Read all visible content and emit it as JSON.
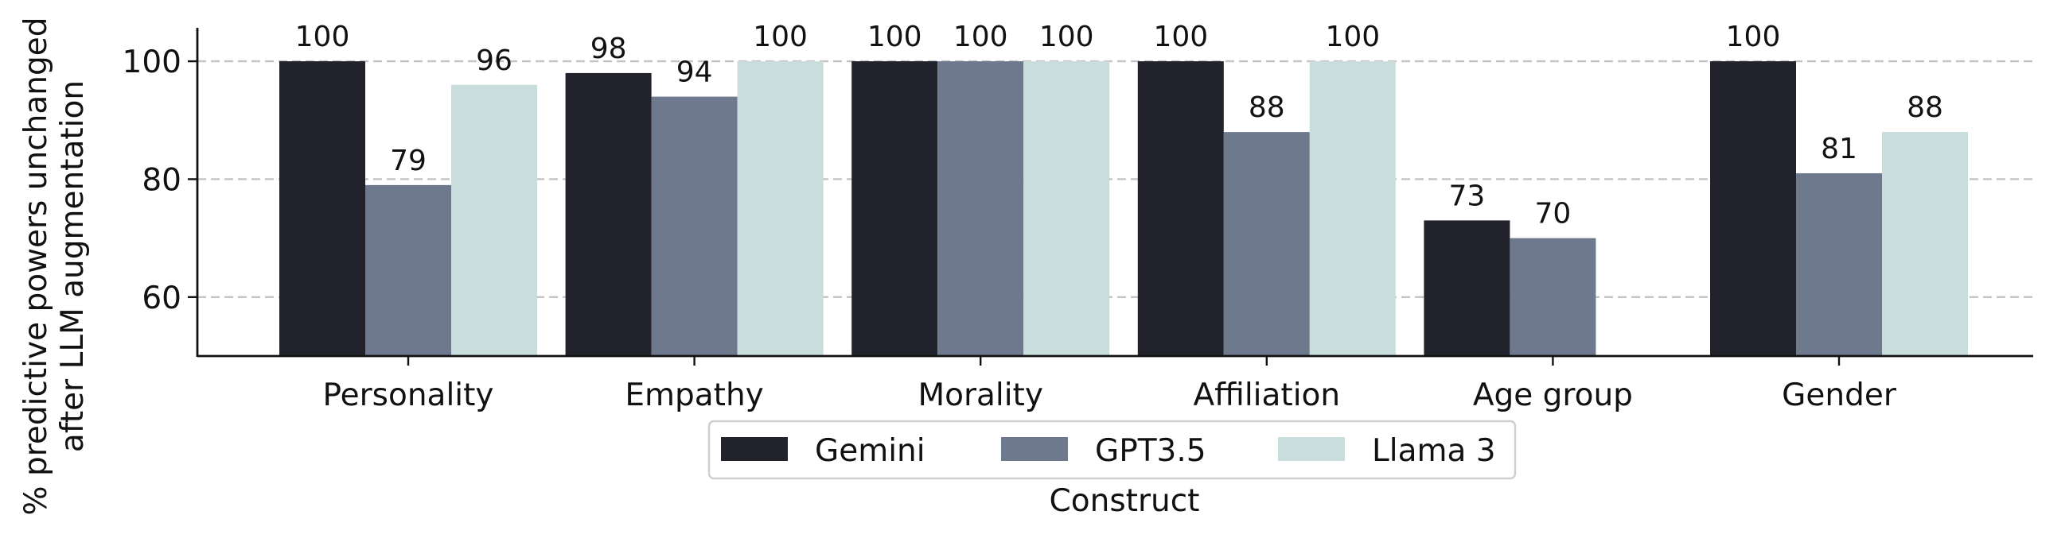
{
  "chart_data": {
    "type": "bar",
    "xlabel": "Construct",
    "ylabel_lines": [
      "% predictive powers unchanged",
      "after LLM augmentation"
    ],
    "categories": [
      "Personality",
      "Empathy",
      "Morality",
      "Affiliation",
      "Age group",
      "Gender"
    ],
    "series": [
      {
        "name": "Gemini",
        "color": "#22222d",
        "values": [
          100,
          98,
          100,
          100,
          73,
          100
        ]
      },
      {
        "name": "GPT3.5",
        "color": "#6e798d",
        "values": [
          79,
          94,
          100,
          88,
          70,
          81
        ]
      },
      {
        "name": "Llama 3",
        "color": "#c9dddc",
        "values": [
          96,
          100,
          100,
          100,
          null,
          88
        ]
      }
    ],
    "data_labels": [
      [
        "100",
        "98",
        "100",
        "100",
        "73",
        "100"
      ],
      [
        "79",
        "94",
        "100",
        "88",
        "70",
        "81"
      ],
      [
        "96",
        "100",
        "100",
        "100",
        null,
        "88"
      ]
    ],
    "yticks": [
      60,
      80,
      100
    ],
    "ylim": [
      50,
      105
    ],
    "grid": "horizontal dashed",
    "legend_position": "bottom-center"
  }
}
